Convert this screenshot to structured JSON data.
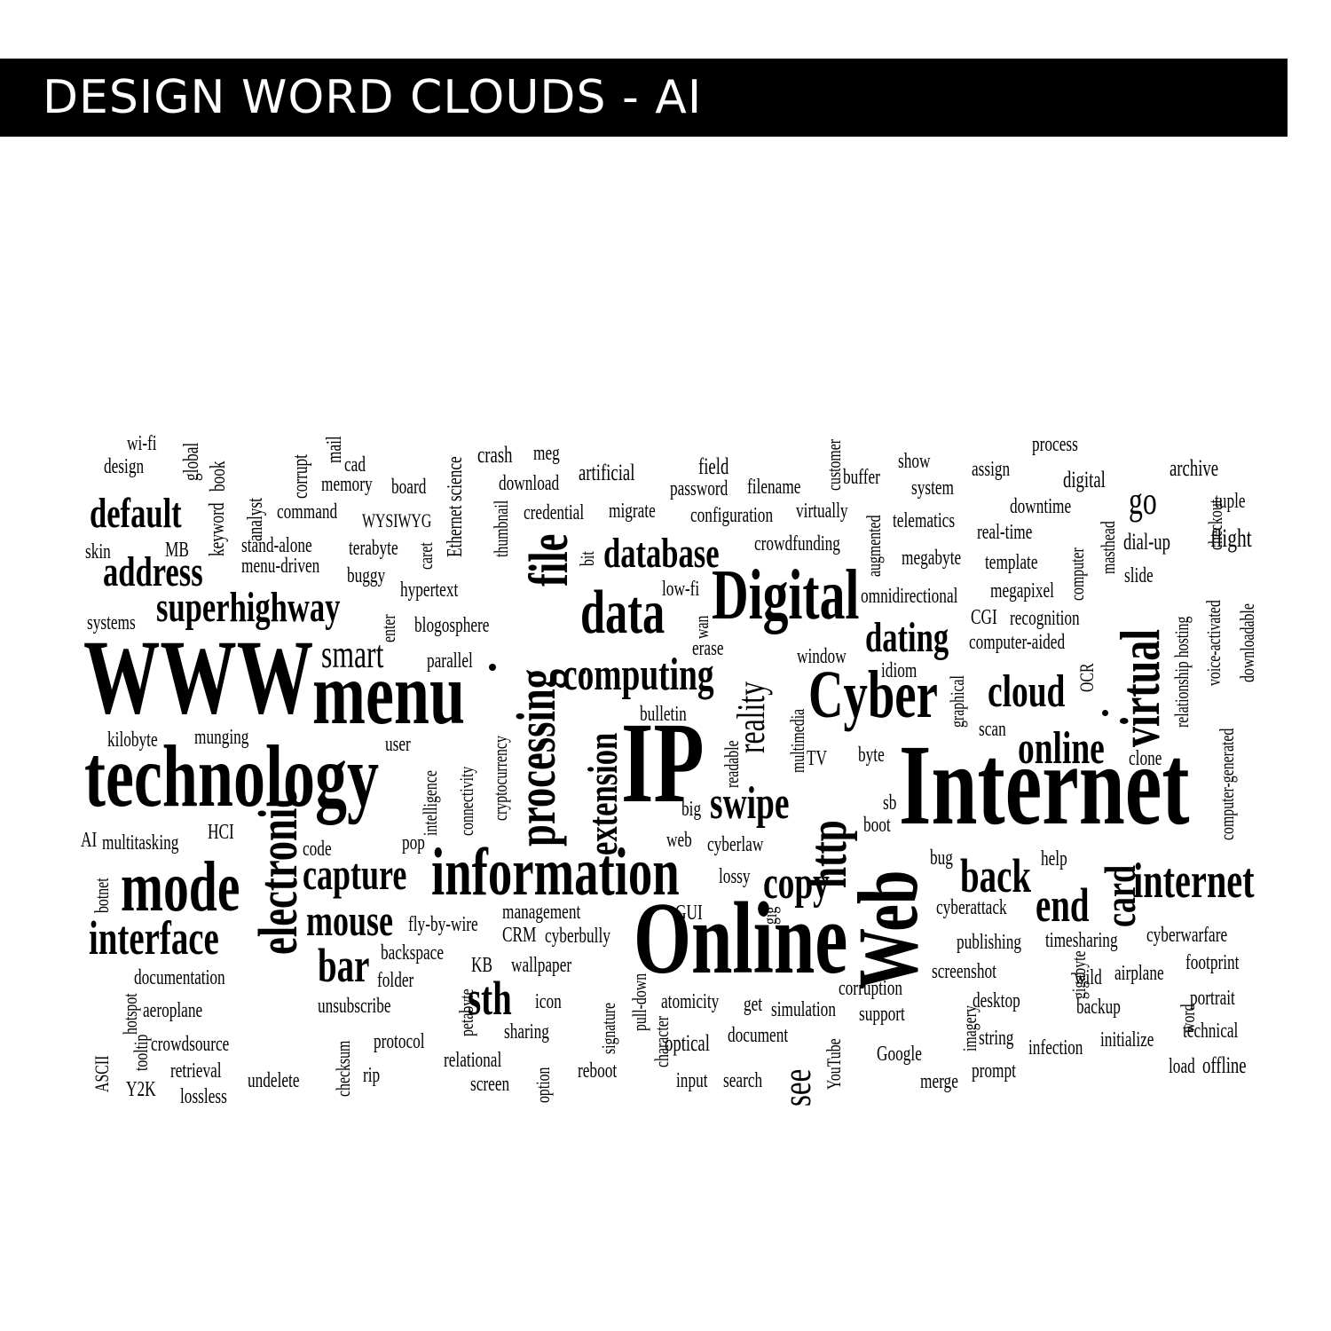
{
  "header": {
    "title": "DESIGN WORD CLOUDS - AI"
  },
  "colors": {
    "bar": "#000000",
    "text": "#000000",
    "background": "#ffffff"
  },
  "words": [
    "wi-fi",
    "design",
    "global",
    "book",
    "corrupt",
    "mail",
    "cad",
    "memory",
    "board",
    "Ethernet science",
    "crash",
    "meg",
    "download",
    "artificial",
    "field",
    "password",
    "filename",
    "customer",
    "buffer",
    "show",
    "system",
    "assign",
    "process",
    "digital",
    "archive",
    "tuple",
    "default",
    "keyword",
    "analyst",
    "command",
    "WYSIWYG",
    "thumbnail",
    "credential",
    "migrate",
    "configuration",
    "virtually",
    "augmented",
    "telematics",
    "downtime",
    "masthead",
    "checkout",
    "flight",
    "go",
    "skin",
    "MB",
    "stand-alone",
    "terabyte",
    "caret",
    "bit",
    "database",
    "crowdfunding",
    "real-time",
    "computer",
    "dial-up",
    "address",
    "menu-driven",
    "buggy",
    "file",
    "megabyte",
    "template",
    "slide",
    "hypertext",
    "low-fi",
    "omnidirectional",
    "megapixel",
    "relationship hosting",
    "voice-activated",
    "downloadable",
    "superhighway",
    "enter",
    "blogosphere",
    "processing",
    "data",
    "Digital",
    "wan",
    "CGI",
    "recognition",
    "systems",
    "erase",
    "dating",
    "computer-aided",
    "virtual",
    "WWW",
    "smart",
    "parallel",
    "computing",
    "window",
    "idiom",
    "OCR",
    "menu",
    "reality",
    "cloud",
    "Cyber",
    "bulletin",
    "graphical",
    "computer-generated",
    "kilobyte",
    "munging",
    "user",
    "cryptocurrency",
    "multimedia",
    "scan",
    "online",
    "technology",
    "intelligence",
    "connectivity",
    "extension",
    "IP",
    "readable",
    "TV",
    "byte",
    "clone",
    "big",
    "swipe",
    "Internet",
    "http",
    "sb",
    "boot",
    "AI",
    "multitasking",
    "HCI",
    "code",
    "pop",
    "electronic",
    "web",
    "cyberlaw",
    "bug",
    "help",
    "card",
    "mode",
    "capture",
    "information",
    "lossy",
    "copy",
    "back",
    "internet",
    "botnet",
    "gig",
    "end",
    "cyberattack",
    "mouse",
    "fly-by-wire",
    "management",
    "GUI",
    "interface",
    "CRM",
    "cyberbully",
    "Online",
    "Web",
    "publishing",
    "timesharing",
    "cyberwarfare",
    "bar",
    "backspace",
    "KB",
    "wallpaper",
    "pull-down",
    "screenshot",
    "gigabyte",
    "wild",
    "airplane",
    "footprint",
    "hotspot",
    "documentation",
    "folder",
    "petabyte",
    "sth",
    "corruption",
    "imagery",
    "word",
    "aeroplane",
    "unsubscribe",
    "icon",
    "signature",
    "character",
    "atomicity",
    "get",
    "simulation",
    "support",
    "desktop",
    "backup",
    "portrait",
    "tooltip",
    "crowdsource",
    "sharing",
    "optical",
    "document",
    "string",
    "infection",
    "initialize",
    "technical",
    "ASCII",
    "checksum",
    "protocol",
    "relational",
    "YouTube",
    "Google",
    "load",
    "offline",
    "Y2K",
    "retrieval",
    "undelete",
    "rip",
    "option",
    "reboot",
    "input",
    "search",
    "see",
    "merge",
    "prompt",
    "lossless",
    "screen"
  ]
}
